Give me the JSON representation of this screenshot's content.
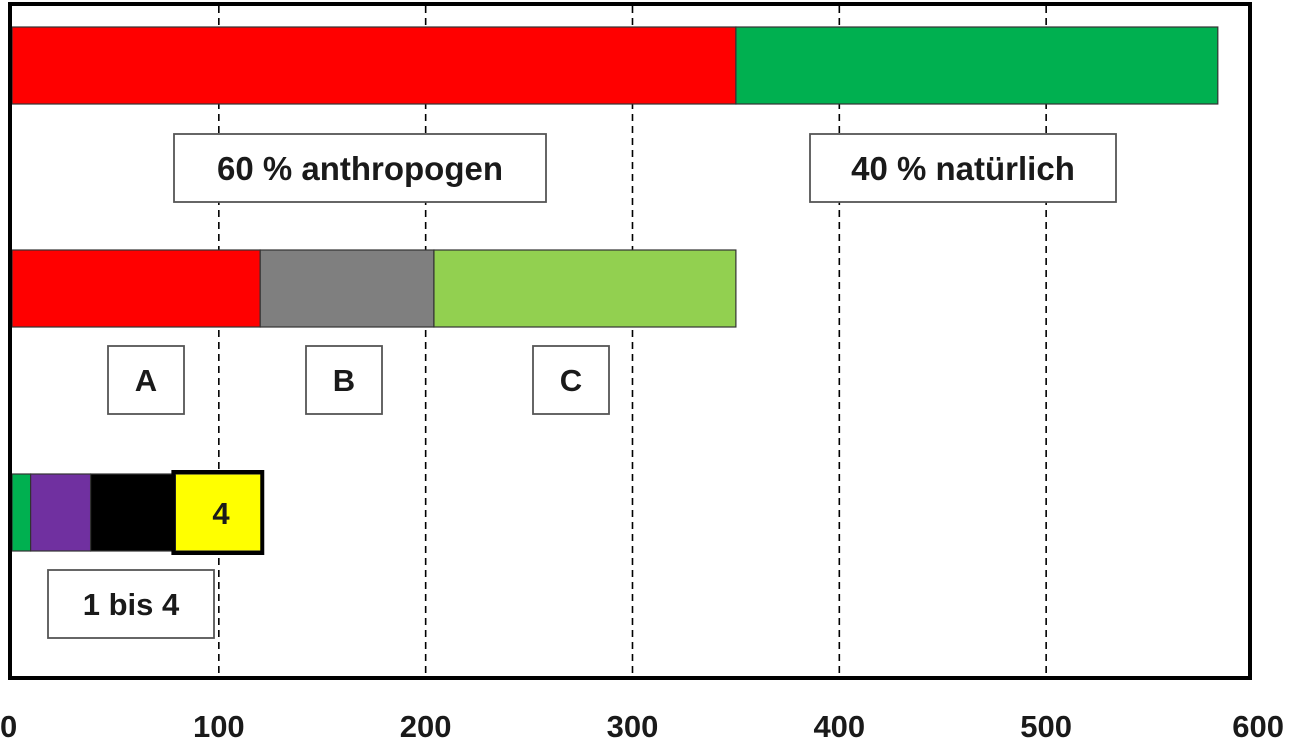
{
  "chart_data": {
    "type": "bar",
    "orientation": "horizontal",
    "stacked": true,
    "xlim": [
      0,
      600
    ],
    "xticks": [
      "0",
      "100",
      "200",
      "300",
      "400",
      "500",
      "600"
    ],
    "grid": "vertical dashed",
    "bars": [
      {
        "segments": [
          {
            "start": 0,
            "end": 350,
            "color": "#ff0000"
          },
          {
            "start": 350,
            "end": 583,
            "color": "#00b050"
          }
        ]
      },
      {
        "segments": [
          {
            "start": 0,
            "end": 120,
            "color": "#ff0000"
          },
          {
            "start": 120,
            "end": 204,
            "color": "#7f7f7f"
          },
          {
            "start": 204,
            "end": 350,
            "color": "#92d050"
          }
        ]
      },
      {
        "segments": [
          {
            "start": 0,
            "end": 9,
            "color": "#00b050"
          },
          {
            "start": 9,
            "end": 38,
            "color": "#7030a0"
          },
          {
            "start": 38,
            "end": 79,
            "color": "#000000"
          },
          {
            "start": 79,
            "end": 121,
            "color": "#ffff00"
          }
        ]
      }
    ],
    "annotations": [
      {
        "text": "60 % anthropogen"
      },
      {
        "text": "40 % natürlich"
      },
      {
        "text": "A"
      },
      {
        "text": "B"
      },
      {
        "text": "C"
      },
      {
        "text": "4"
      },
      {
        "text": "1 bis 4"
      }
    ]
  }
}
